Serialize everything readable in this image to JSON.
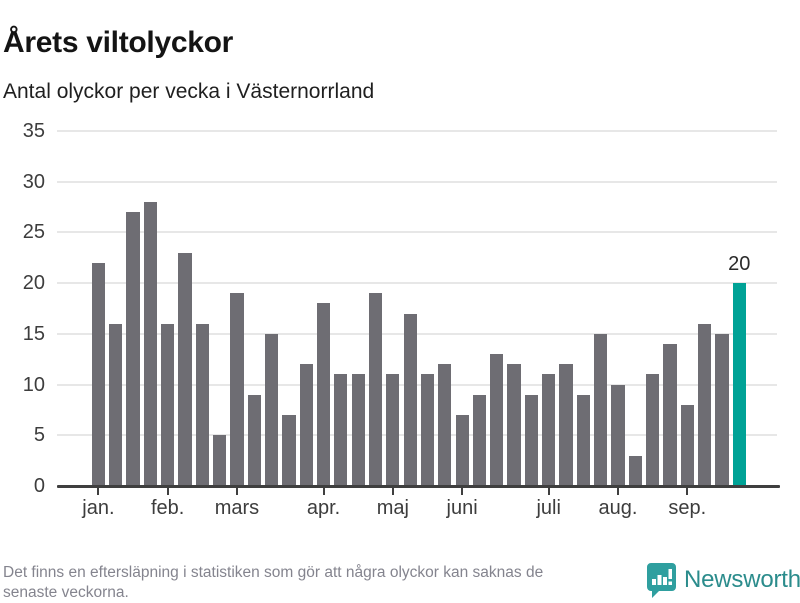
{
  "header": {
    "title": "Årets viltolyckor",
    "subtitle": "Antal olyckor per vecka i Västernorrland"
  },
  "chart_data": {
    "type": "bar",
    "title": "Årets viltolyckor",
    "subtitle": "Antal olyckor per vecka i Västernorrland",
    "x_unit": "vecka",
    "values": [
      22,
      16,
      27,
      28,
      16,
      23,
      16,
      5,
      19,
      9,
      15,
      7,
      12,
      18,
      11,
      11,
      19,
      11,
      17,
      11,
      12,
      7,
      9,
      13,
      12,
      9,
      11,
      12,
      9,
      15,
      10,
      3,
      11,
      14,
      8,
      16,
      15,
      20
    ],
    "xticks": [
      {
        "index": 0,
        "label": "jan."
      },
      {
        "index": 4,
        "label": "feb."
      },
      {
        "index": 8,
        "label": "mars"
      },
      {
        "index": 13,
        "label": "apr."
      },
      {
        "index": 17,
        "label": "maj"
      },
      {
        "index": 21,
        "label": "juni"
      },
      {
        "index": 26,
        "label": "juli"
      },
      {
        "index": 30,
        "label": "aug."
      },
      {
        "index": 34,
        "label": "sep."
      }
    ],
    "yticks": [
      0,
      5,
      10,
      15,
      20,
      25,
      30,
      35
    ],
    "ylim": [
      0,
      35
    ],
    "grid": true,
    "legend": false,
    "highlight_index": 37,
    "annotations": [
      {
        "index": 37,
        "text": "20"
      }
    ],
    "bar_color": "#6e6d73",
    "highlight_color": "#00a296"
  },
  "footer": {
    "note_line1": "Det finns en eftersläpning i statistiken som gör att några olyckor kan saknas de",
    "note_line2": "senaste veckorna.",
    "logo_text": "Newsworthy"
  },
  "colors": {
    "bar_gray": "#6e6d73",
    "accent_teal": "#00a296",
    "axis": "#3f3f3f",
    "gridline": "#e7e7e7",
    "logo_teal": "#2f9f9f",
    "logo_wordmark": "#2b8c8c",
    "footer_text": "#84848e"
  }
}
